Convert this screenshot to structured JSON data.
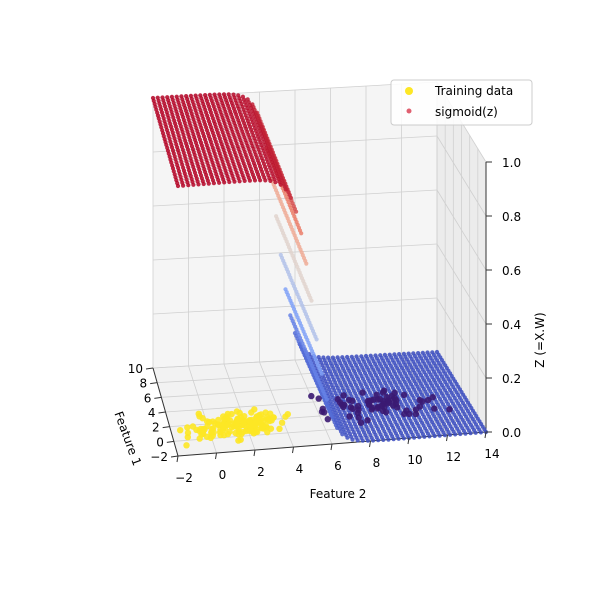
{
  "chart_data": {
    "type": "scatter3d",
    "title": "",
    "axes": {
      "x": {
        "label": "Feature 2",
        "ticks": [
          "−2",
          "0",
          "2",
          "4",
          "6",
          "8",
          "10",
          "12",
          "14"
        ],
        "range": [
          -2,
          14
        ]
      },
      "y": {
        "label": "Feature 1",
        "ticks": [
          "−2",
          "0",
          "2",
          "4",
          "6",
          "8",
          "10"
        ],
        "range": [
          -2,
          10
        ]
      },
      "z": {
        "label": "Z (=X.W)",
        "ticks": [
          "0.0",
          "0.2",
          "0.4",
          "0.6",
          "0.8",
          "1.0"
        ],
        "range": [
          0,
          1
        ]
      }
    },
    "grid": true,
    "legend": {
      "placement": "top-right",
      "entries": [
        {
          "label": "Training data",
          "color": "#fde725"
        },
        {
          "label": "sigmoid(z)",
          "color": "#e06070"
        }
      ]
    },
    "series": [
      {
        "name": "Training data",
        "kind": "points",
        "clusters": [
          {
            "class": 1,
            "color": "#fde725",
            "x_range": [
              -2,
              5
            ],
            "y_range": [
              -1,
              4
            ],
            "z": 0,
            "count": 150
          },
          {
            "class": 0,
            "color": "#3b1a72",
            "x_range": [
              4,
              14
            ],
            "y_range": [
              0,
              6
            ],
            "z": 0,
            "count": 70
          }
        ]
      },
      {
        "name": "sigmoid(z)",
        "kind": "surface",
        "x_range": [
          -2,
          14
        ],
        "y_range": [
          -2,
          10
        ],
        "transition_x": 5,
        "low_value": 0,
        "high_value": 1,
        "colormap": "coolwarm"
      }
    ]
  }
}
